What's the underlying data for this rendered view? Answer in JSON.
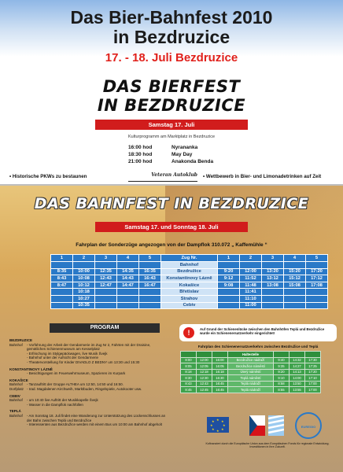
{
  "header": {
    "title_line1": "Das Bier-Bahnfest 2010",
    "title_line2": "in Bezdruzice",
    "date": "17. - 18. Juli Bezdruzice"
  },
  "bierfest": {
    "title_line1": "DAS BIERFEST",
    "title_line2": "IN BEZDRUZICE",
    "date_bar": "Samstag 17. Juli",
    "subtitle": "Kulturprogramm am Marktplatz in Bezdruzice",
    "program": [
      {
        "time": "16:00 hod",
        "act": "Nyrananka"
      },
      {
        "time": "18:30 hod",
        "act": "May Day"
      },
      {
        "time": "21:00 hod",
        "act": "Anakonda Benda"
      }
    ]
  },
  "strip": {
    "left": "• Historische PKWs zu bestaunen",
    "logo": "Veteran Autoklub",
    "right": "• Wettbewerb in Bier- und Limonadetrinken auf Zeit"
  },
  "bahnfest": {
    "title": "DAS BAHNFEST IN BEZDRUZICE",
    "date_bar": "Samstag 17. und Sonntag 18. Juli",
    "timetable_title": "Fahrplan der Sonderzüge angezogen von der Dampflok 310.072 „ Kaffemühle “",
    "columns_left": [
      "1",
      "2",
      "3",
      "4",
      "5"
    ],
    "zug_label": "Zug Nr.",
    "columns_right": [
      "1",
      "2",
      "3",
      "4",
      "5"
    ],
    "rows": [
      {
        "l": [
          "",
          "",
          "",
          "",
          ""
        ],
        "station": "Bahnhof",
        "r": [
          "",
          "",
          "",
          "",
          ""
        ]
      },
      {
        "l": [
          "8:35",
          "10:00",
          "12:35",
          "14:35",
          "16:35"
        ],
        "station": "Bezdružice",
        "r": [
          "9:20",
          "12:00",
          "13:20",
          "15:20",
          "17:20"
        ]
      },
      {
        "l": [
          "8:43",
          "10:08",
          "12:43",
          "14:43",
          "16:43"
        ],
        "station": "Konstantinovy Lázně",
        "r": [
          "9:12",
          "11:52",
          "13:12",
          "15:12",
          "17:12"
        ]
      },
      {
        "l": [
          "8:47",
          "10:12",
          "12:47",
          "14:47",
          "16:47"
        ],
        "station": "Kokašice",
        "r": [
          "9:08",
          "11:48",
          "13:08",
          "15:08",
          "17:08"
        ]
      },
      {
        "l": [
          "",
          "10:18",
          "",
          "",
          ""
        ],
        "station": "Břetislav",
        "r": [
          "",
          "11:41",
          "",
          "",
          ""
        ]
      },
      {
        "l": [
          "",
          "10:27",
          "",
          "",
          ""
        ],
        "station": "Strahov",
        "r": [
          "",
          "11:10",
          "",
          "",
          ""
        ]
      },
      {
        "l": [
          "",
          "10:35",
          "",
          "",
          ""
        ],
        "station": "Cebiv",
        "r": [
          "",
          "11:00",
          "",
          "",
          ""
        ]
      }
    ]
  },
  "program": {
    "header": "PROGRAM",
    "sections": [
      {
        "title": "BEZDRUZICE",
        "rows": [
          {
            "label": "Bahnhof",
            "text": "- Vorführung der Arbeit der Gendarmerie im Zug Nr 2, Fahrten mit der Draisine, gemütliches Schienenmuseum am Kesselplatz"
          },
          {
            "label": "",
            "text": "- Erfrischung im Stylgepäckwagen, live Musik Švejk"
          },
          {
            "label": "",
            "text": "- Bahnhof unter der Aufsicht der Gendarmerie"
          },
          {
            "label": "",
            "text": "- Theatervorstellung für Kinder DIVADLO Z BEDNY um 13:30 und 15:30"
          }
        ]
      },
      {
        "title": "KONSTANTINOVY LÁZNĚ",
        "rows": [
          {
            "label": "",
            "text": "- Besichtigungen im Feuerwehrmuseum, Spazieren im Kurpark"
          }
        ]
      },
      {
        "title": "KOKAŠICE",
        "rows": [
          {
            "label": "Bahnhof",
            "text": "- Tanzauftritt der Gruppe ALTHEA um 12:50, 14:50 und 16:50."
          }
        ]
      },
      {
        "title": "",
        "rows": [
          {
            "label": "Dorfplatz",
            "text": "- Irad. Magdalenen Kirchweih, Marktbuden, Ringelspiele, Autokooter usw."
          }
        ]
      },
      {
        "title": "CEBIV",
        "rows": [
          {
            "label": "Bahnhof",
            "text": "- um 10:40 live Auftritt der Musikkapelle Švejk"
          },
          {
            "label": "",
            "text": "- Wasser in die Dampflok nachfüllen"
          }
        ]
      },
      {
        "title": "TEPLÁ",
        "rows": [
          {
            "label": "Bahnhof",
            "text": "- Am Sonntag 18. Juli findet eine Wanderung zur Unterstützung des Lückenschlusses an der Bahn zwischen Teplá und Bezdružice"
          },
          {
            "label": "",
            "text": "- Interessenten aus Bezdružice werden mit einem Bus um 10:00 am Bahnhof abgeholt"
          }
        ]
      }
    ]
  },
  "notice": {
    "icon": "!",
    "text": "Auf Grund der Schienenlücke zwischen den Bahnhöfen Teplá und Bezdružice wurde ein Schienenersatzverkehr eingerichtet!"
  },
  "replacement": {
    "title": "Fahrplan des Schienenersatzverkehrs zwischen Bezdružice und Teplá",
    "header": "Haltestelle",
    "rows": [
      {
        "l": [
          "8:00",
          "12:00",
          "16:00"
        ],
        "station": "Bezdružice nádraží",
        "r": [
          "9:40",
          "14:32",
          "17:30"
        ]
      },
      {
        "l": [
          "8:05",
          "12:05",
          "16:05"
        ],
        "station": "Bezdružice náměstí",
        "r": [
          "9:35",
          "14:27",
          "17:25"
        ]
      },
      {
        "l": [
          "8:18",
          "12:18",
          "16:18"
        ],
        "station": "Úterý náměstí",
        "r": [
          "9:20",
          "14:13",
          "17:20"
        ]
      },
      {
        "l": [
          "8:30",
          "12:30",
          "16:30"
        ],
        "station": "Teplá náměstí",
        "r": [
          "9:10",
          "14:00",
          "17:10"
        ]
      },
      {
        "l": [
          "8:43",
          "12:43",
          "16:45"
        ],
        "station": "Teplá nádraží",
        "r": [
          "8:58",
          "13:50",
          "17:00"
        ]
      },
      {
        "l": [
          "8:45",
          "12:45",
          "16:45"
        ],
        "station": "Teplá nádraží",
        "r": [
          "8:55",
          "13:55",
          "17:00"
        ]
      }
    ]
  },
  "logos": {
    "euregio": "EUREGIO",
    "caption": "Kofinanziert durch die Europäische Union aus dem Europäischen Fonds für regionale Entwicklung. Investitionen in Ihre Zukunft."
  },
  "colors": {
    "accent_red": "#e0201b",
    "bar_red": "#d11c1c",
    "timetable_blue": "#2a79c7",
    "table_green": "#3fa24c"
  }
}
